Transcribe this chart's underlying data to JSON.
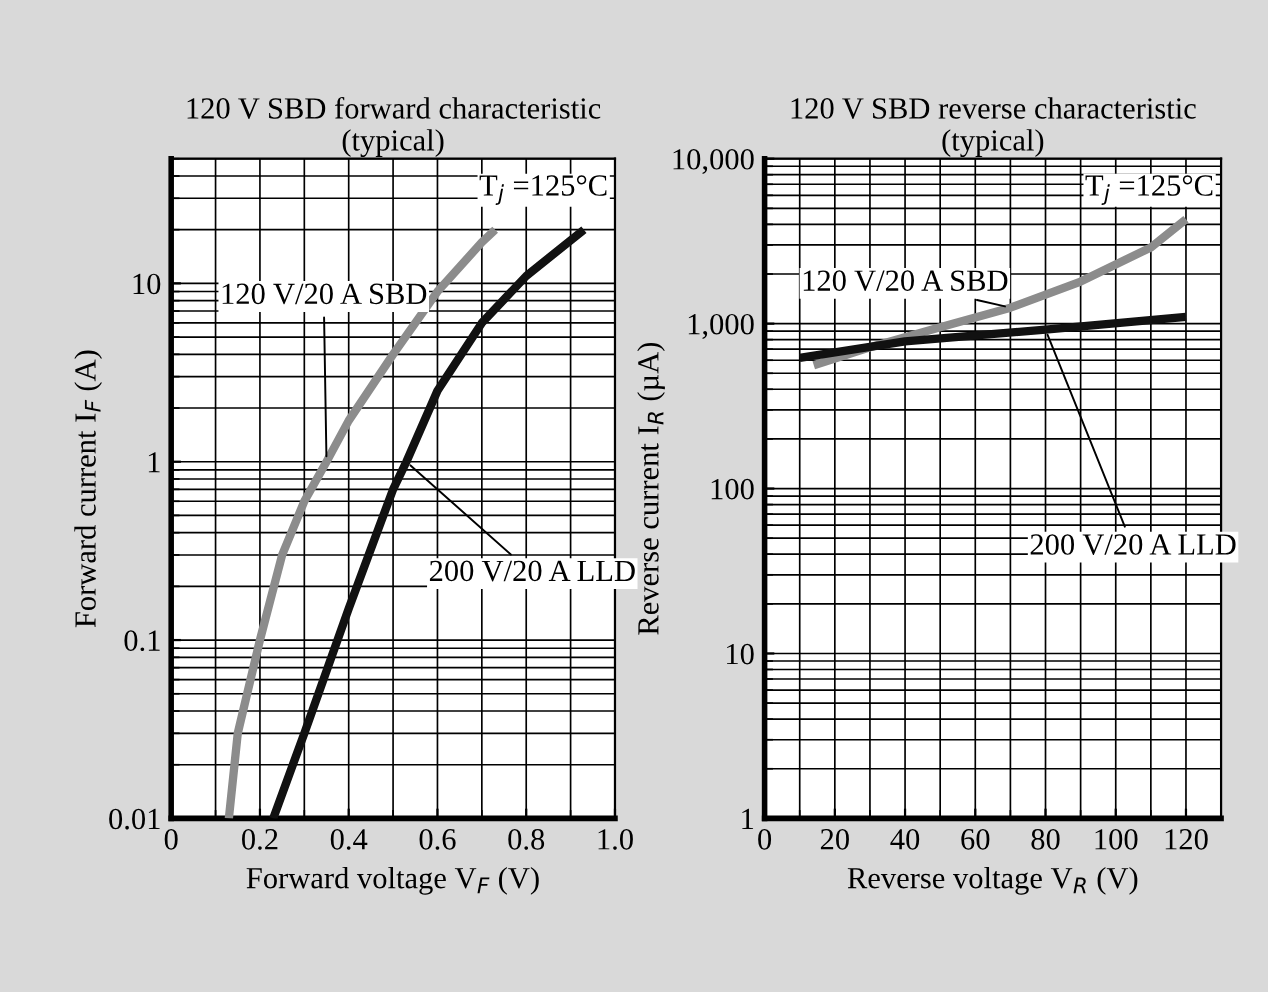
{
  "chart_data": [
    {
      "type": "line",
      "title": "120 V SBD forward characteristic\n(typical)",
      "xlabel": "Forward voltage V$_{F}$ (V)",
      "ylabel": "Forward current I$_{F}$ (A)",
      "log": "y",
      "grid": true,
      "legend": false,
      "xlim": [
        0,
        1
      ],
      "ylim": [
        0.01,
        50
      ],
      "xticks": [
        0,
        0.2,
        0.4,
        0.6,
        0.8,
        {
          "value": 1,
          "label": "1.0"
        }
      ],
      "yticks": [
        0.01,
        0.1,
        1,
        10
      ],
      "annotations": [
        "T$_{j}$ =125°C"
      ],
      "series": [
        {
          "name": "120 V/20 A SBD",
          "color": "#8c8c8c",
          "x": [
            0.13,
            0.15,
            0.2,
            0.25,
            0.3,
            0.35,
            0.4,
            0.5,
            0.6,
            0.7,
            0.73
          ],
          "values": [
            0.01,
            0.03,
            0.1,
            0.3,
            0.6,
            1,
            1.7,
            4,
            9,
            17,
            20
          ]
        },
        {
          "name": "200 V/20 A LLD",
          "color": "#111111",
          "x": [
            0.23,
            0.3,
            0.4,
            0.5,
            0.53,
            0.6,
            0.7,
            0.8,
            0.93
          ],
          "values": [
            0.01,
            0.03,
            0.15,
            0.7,
            1,
            2.5,
            6,
            11,
            20
          ]
        }
      ]
    },
    {
      "type": "line",
      "title": "120 V SBD reverse characteristic\n(typical)",
      "xlabel": "Reverse voltage V$_{R}$ (V)",
      "ylabel": "Reverse current I$_{R}$ (µA)",
      "log": "y",
      "grid": true,
      "legend": false,
      "xlim": [
        0,
        130
      ],
      "ylim": [
        1,
        10000
      ],
      "xticks": [
        0,
        20,
        40,
        60,
        80,
        100,
        120
      ],
      "yticks": [
        1,
        10,
        100,
        {
          "value": 1000,
          "label": "1,000"
        },
        {
          "value": 10000,
          "label": "10,000"
        }
      ],
      "annotations": [
        "T$_{j}$ =125°C"
      ],
      "series": [
        {
          "name": "120 V/20 A SBD",
          "color": "#8c8c8c",
          "x": [
            14,
            30,
            50,
            70,
            90,
            110,
            120
          ],
          "values": [
            560,
            720,
            950,
            1250,
            1800,
            2900,
            4300
          ]
        },
        {
          "name": "200 V/20 A LLD",
          "color": "#111111",
          "x": [
            10,
            40,
            80,
            120
          ],
          "values": [
            620,
            780,
            920,
            1100
          ]
        }
      ]
    }
  ]
}
